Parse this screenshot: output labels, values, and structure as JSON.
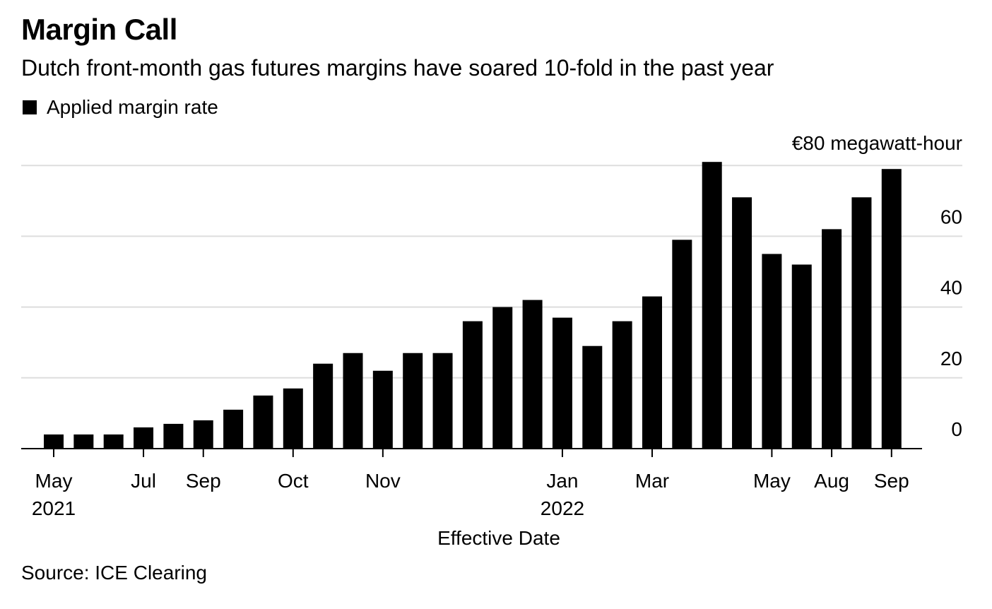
{
  "title": "Margin Call",
  "subtitle": "Dutch front-month gas futures margins have soared 10-fold in the past year",
  "legend": {
    "label": "Applied margin rate",
    "color": "#000000"
  },
  "source": "Source: ICE Clearing",
  "colors": {
    "bar": "#000000",
    "grid": "#dddddd",
    "axis": "#000000"
  },
  "chart_data": {
    "type": "bar",
    "xlabel": "Effective Date",
    "ylabel": "",
    "y_unit_label": "€80 megawatt-hour",
    "ylim": [
      0,
      80
    ],
    "yticks": [
      0,
      20,
      40,
      60,
      80
    ],
    "ytick_labels": [
      "0",
      "20",
      "40",
      "60",
      ""
    ],
    "values": [
      4,
      4,
      4,
      6,
      7,
      8,
      11,
      15,
      17,
      24,
      27,
      22,
      27,
      27,
      36,
      40,
      42,
      37,
      29,
      36,
      43,
      59,
      81,
      71,
      55,
      52,
      62,
      71,
      79
    ],
    "x_labels": [
      {
        "index": 0,
        "label": "May",
        "sub": "2021"
      },
      {
        "index": 3,
        "label": "Jul",
        "sub": ""
      },
      {
        "index": 5,
        "label": "Sep",
        "sub": ""
      },
      {
        "index": 8,
        "label": "Oct",
        "sub": ""
      },
      {
        "index": 11,
        "label": "Nov",
        "sub": ""
      },
      {
        "index": 17,
        "label": "Jan",
        "sub": "2022"
      },
      {
        "index": 20,
        "label": "Mar",
        "sub": ""
      },
      {
        "index": 24,
        "label": "May",
        "sub": ""
      },
      {
        "index": 26,
        "label": "Aug",
        "sub": ""
      },
      {
        "index": 28,
        "label": "Sep",
        "sub": ""
      }
    ]
  }
}
